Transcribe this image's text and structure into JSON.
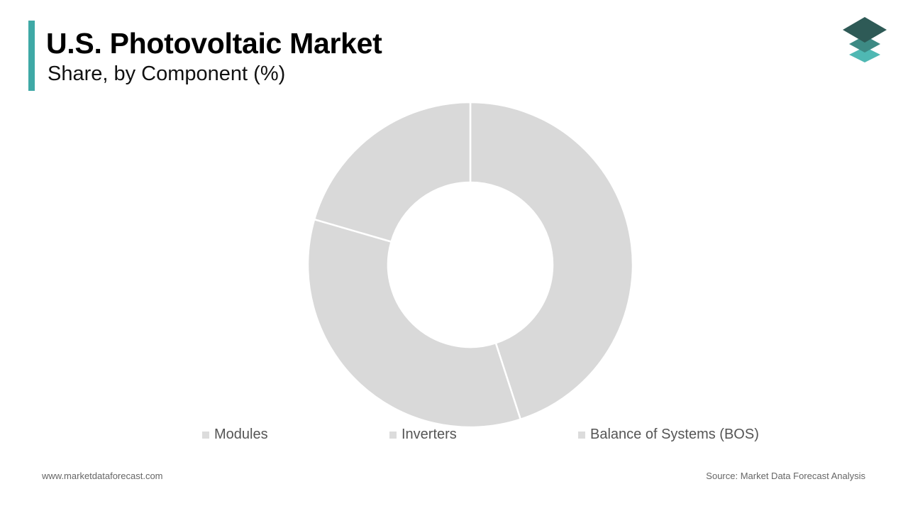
{
  "header": {
    "title": "U.S. Photovoltaic Market",
    "subtitle": "Share, by Component (%)"
  },
  "brand": {
    "accent_color": "#3fa9a6",
    "logo_icon": "stacked-layers-icon",
    "logo_colors": [
      "#2e5a56",
      "#3d8a84",
      "#4fb8b3"
    ]
  },
  "chart_data": {
    "type": "pie",
    "style": "donut",
    "categories": [
      "Modules",
      "Inverters",
      "Balance of Systems (BOS)"
    ],
    "values": [
      45.0,
      34.5,
      20.5
    ],
    "colors": [
      "#d9d9d9",
      "#d9d9d9",
      "#d9d9d9"
    ],
    "legend_position": "bottom",
    "legend_swatch_color": "#dcdcdc"
  },
  "footer": {
    "website": "www.marketdataforecast.com",
    "source": "Source: Market Data Forecast Analysis"
  }
}
